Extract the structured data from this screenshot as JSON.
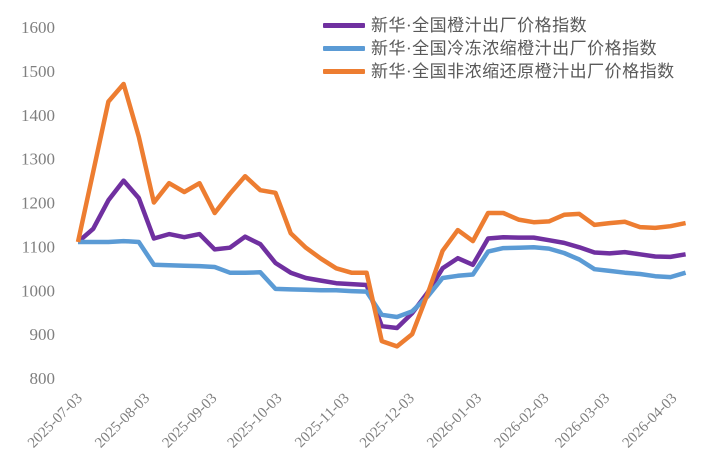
{
  "chart_data": {
    "type": "line",
    "title": "",
    "xlabel": "",
    "ylabel": "",
    "grid": false,
    "legend_position": "top-center",
    "ylim": [
      800,
      1600
    ],
    "y_ticks": [
      800,
      900,
      1000,
      1100,
      1200,
      1300,
      1400,
      1500,
      1600
    ],
    "x_ticks": [
      "2025-07-03",
      "2025-08-03",
      "2025-09-03",
      "2025-10-03",
      "2025-11-03",
      "2025-12-03",
      "2026-01-03",
      "2026-02-03",
      "2026-03-03",
      "2026-04-03"
    ],
    "x": [
      "2025-07-03",
      "2025-07-10",
      "2025-07-17",
      "2025-07-24",
      "2025-07-31",
      "2025-08-07",
      "2025-08-14",
      "2025-08-21",
      "2025-08-28",
      "2025-09-04",
      "2025-09-11",
      "2025-09-18",
      "2025-09-25",
      "2025-10-02",
      "2025-10-09",
      "2025-10-16",
      "2025-10-23",
      "2025-10-30",
      "2025-11-06",
      "2025-11-13",
      "2025-11-20",
      "2025-11-27",
      "2025-12-04",
      "2025-12-11",
      "2025-12-18",
      "2025-12-25",
      "2026-01-01",
      "2026-01-08",
      "2026-01-15",
      "2026-01-22",
      "2026-01-29",
      "2026-02-05",
      "2026-02-12",
      "2026-02-19",
      "2026-02-26",
      "2026-03-05",
      "2026-03-12",
      "2026-03-19",
      "2026-03-26",
      "2026-04-02",
      "2026-04-09"
    ],
    "series": [
      {
        "name": "新华·全国橙汁出厂价格指数",
        "color": "#7030a0",
        "values": [
          1110,
          1140,
          1205,
          1250,
          1210,
          1118,
          1128,
          1121,
          1128,
          1093,
          1097,
          1122,
          1105,
          1062,
          1040,
          1028,
          1022,
          1016,
          1014,
          1012,
          918,
          914,
          948,
          994,
          1050,
          1073,
          1058,
          1118,
          1121,
          1120,
          1120,
          1114,
          1108,
          1098,
          1086,
          1084,
          1087,
          1082,
          1077,
          1076,
          1082
        ]
      },
      {
        "name": "新华·全国冷冻浓缩橙汁出厂价格指数",
        "color": "#5b9bd5",
        "values": [
          1110,
          1110,
          1110,
          1112,
          1110,
          1058,
          1057,
          1056,
          1055,
          1053,
          1040,
          1040,
          1041,
          1003,
          1002,
          1001,
          1000,
          1000,
          998,
          997,
          944,
          939,
          952,
          985,
          1028,
          1033,
          1036,
          1088,
          1096,
          1097,
          1098,
          1095,
          1085,
          1070,
          1048,
          1044,
          1040,
          1037,
          1032,
          1030,
          1040
        ]
      },
      {
        "name": "新华·全国非浓缩还原橙汁出厂价格指数",
        "color": "#ed7d31",
        "values": [
          1110,
          1270,
          1430,
          1470,
          1350,
          1200,
          1244,
          1224,
          1244,
          1176,
          1220,
          1260,
          1228,
          1222,
          1130,
          1097,
          1072,
          1050,
          1040,
          1040,
          884,
          872,
          900,
          990,
          1090,
          1137,
          1112,
          1176,
          1176,
          1161,
          1155,
          1157,
          1172,
          1174,
          1149,
          1153,
          1156,
          1144,
          1142,
          1146,
          1153
        ]
      }
    ],
    "tick_color": "#7f7f7f",
    "line_width": 4.5
  }
}
